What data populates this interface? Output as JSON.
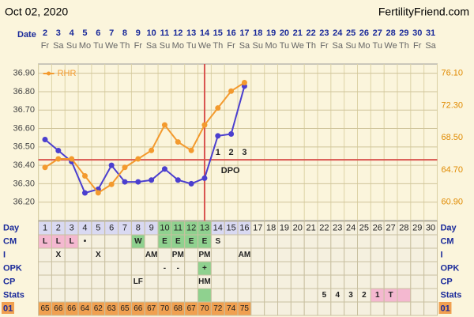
{
  "header": {
    "date": "Oct 02, 2020",
    "site": "FertilityFriend.com"
  },
  "chart_data": {
    "type": "line",
    "date_label": "Date",
    "dates": [
      2,
      3,
      4,
      5,
      6,
      7,
      8,
      9,
      10,
      11,
      12,
      13,
      14,
      15,
      16,
      17,
      18,
      19,
      20,
      21,
      22,
      23,
      24,
      25,
      26,
      27,
      28,
      29,
      30,
      31
    ],
    "weekdays": [
      "Fr",
      "Sa",
      "Su",
      "Mo",
      "Tu",
      "We",
      "Th",
      "Fr",
      "Sa",
      "Su",
      "Mo",
      "Tu",
      "We",
      "Th",
      "Fr",
      "Sa",
      "Su",
      "Mo",
      "Tu",
      "We",
      "Th",
      "Fr",
      "Sa",
      "Su",
      "Mo",
      "Tu",
      "We",
      "Th",
      "Fr",
      "Sa"
    ],
    "categories": [
      1,
      2,
      3,
      4,
      5,
      6,
      7,
      8,
      9,
      10,
      11,
      12,
      13,
      14,
      15,
      16,
      17,
      18,
      19,
      20,
      21,
      22,
      23,
      24,
      25,
      26,
      27,
      28,
      29,
      30
    ],
    "series": [
      {
        "color": "#4b3fcf",
        "values": [
          36.54,
          36.48,
          36.42,
          36.25,
          36.27,
          36.4,
          36.31,
          36.31,
          36.32,
          36.38,
          36.32,
          36.3,
          36.33,
          36.56,
          36.57,
          36.83,
          null,
          null,
          null,
          null,
          null,
          null,
          null,
          null,
          null,
          null,
          null,
          null,
          null,
          null
        ]
      },
      {
        "name": "RHR",
        "color": "#f39a2e",
        "axis": "y2",
        "values": [
          65,
          66,
          66,
          64,
          62,
          63,
          65,
          66,
          67,
          70,
          68,
          67,
          70,
          72,
          74,
          75,
          null,
          null,
          null,
          null,
          null,
          null,
          null,
          null,
          null,
          null,
          null,
          null,
          null,
          null
        ]
      }
    ],
    "ylim": [
      36.1,
      36.95
    ],
    "yticks": [
      {
        "value": 36.9,
        "label": "36.90"
      },
      {
        "value": 36.8,
        "label": "36.80"
      },
      {
        "value": 36.7,
        "label": "36.70"
      },
      {
        "value": 36.6,
        "label": "36.60"
      },
      {
        "value": 36.5,
        "label": "36.50"
      },
      {
        "value": 36.4,
        "label": "36.40"
      },
      {
        "value": 36.3,
        "label": "36.30"
      },
      {
        "value": 36.2,
        "label": "36.20"
      }
    ],
    "y2lim": [
      58.73,
      77.19
    ],
    "y2ticks": [
      {
        "value": 76.1,
        "label": "76.10"
      },
      {
        "value": 72.3,
        "label": "72.30"
      },
      {
        "value": 68.5,
        "label": "68.50"
      },
      {
        "value": 64.7,
        "label": "64.70"
      },
      {
        "value": 60.9,
        "label": "60.90"
      }
    ],
    "coverline": 36.43,
    "coverline_color": "#d9534f",
    "ovulation_day": 13,
    "dpo_labels": [
      "1",
      "2",
      "3"
    ],
    "dpo_text": "DPO",
    "grid": true,
    "legend": "top-left"
  },
  "table": {
    "day_label": "Day",
    "day_fills": [
      "#d9d9f2",
      "#d9d9f2",
      "#d9d9f2",
      "#d9d9f2",
      "#d9d9f2",
      "#d9d9f2",
      "#d9d9f2",
      "#d9d9f2",
      "#d9d9f2",
      "#8fd18f",
      "#8fd18f",
      "#8fd18f",
      "#8fd18f",
      "#d9d9f2",
      "#d9d9f2",
      "#d9d9f2",
      null,
      null,
      null,
      null,
      null,
      null,
      null,
      null,
      null,
      null,
      null,
      null,
      null,
      null
    ],
    "rows": [
      {
        "label": "CM",
        "cells": [
          "L",
          "L",
          "L",
          "•",
          null,
          null,
          null,
          "W",
          null,
          "E",
          "E",
          "E",
          "E",
          "S",
          null,
          null,
          null,
          null,
          null,
          null,
          null,
          null,
          null,
          null,
          null,
          null,
          null,
          null,
          null,
          null
        ],
        "fills": [
          "#f4b8d0",
          "#f4b8d0",
          "#f4b8d0",
          null,
          null,
          null,
          null,
          "#8fd18f",
          null,
          "#8fd18f",
          "#8fd18f",
          "#8fd18f",
          "#8fd18f",
          null,
          null,
          null,
          null,
          null,
          null,
          null,
          null,
          null,
          null,
          null,
          null,
          null,
          null,
          null,
          null,
          null
        ]
      },
      {
        "label": "I",
        "cells": [
          null,
          "X",
          null,
          null,
          "X",
          null,
          null,
          null,
          "AM",
          null,
          "PM",
          null,
          "PM",
          null,
          null,
          "AM",
          null,
          null,
          null,
          null,
          null,
          null,
          null,
          null,
          null,
          null,
          null,
          null,
          null,
          null
        ]
      },
      {
        "label": "OPK",
        "cells": [
          null,
          null,
          null,
          null,
          null,
          null,
          null,
          null,
          null,
          "-",
          "-",
          null,
          "+",
          null,
          null,
          null,
          null,
          null,
          null,
          null,
          null,
          null,
          null,
          null,
          null,
          null,
          null,
          null,
          null,
          null
        ],
        "fills": [
          null,
          null,
          null,
          null,
          null,
          null,
          null,
          null,
          null,
          null,
          null,
          null,
          "#8fd18f",
          null,
          null,
          null,
          null,
          null,
          null,
          null,
          null,
          null,
          null,
          null,
          null,
          null,
          null,
          null,
          null,
          null
        ]
      },
      {
        "label": "CP",
        "cells": [
          null,
          null,
          null,
          null,
          null,
          null,
          null,
          "LF",
          null,
          null,
          null,
          null,
          "HM",
          null,
          null,
          null,
          null,
          null,
          null,
          null,
          null,
          null,
          null,
          null,
          null,
          null,
          null,
          null,
          null,
          null
        ]
      },
      {
        "label": "Stats",
        "cells": [
          null,
          null,
          null,
          null,
          null,
          null,
          null,
          null,
          null,
          null,
          null,
          null,
          null,
          null,
          null,
          null,
          null,
          null,
          null,
          null,
          null,
          "5",
          "4",
          "3",
          "2",
          "1",
          "T",
          null,
          null,
          null
        ],
        "fills": [
          null,
          null,
          null,
          null,
          null,
          null,
          null,
          null,
          null,
          null,
          null,
          null,
          "#8fd18f",
          null,
          null,
          null,
          null,
          null,
          null,
          null,
          null,
          null,
          null,
          null,
          null,
          "#f4b8d0",
          "#f4b8d0",
          "#f4b8d0",
          null,
          null
        ]
      }
    ],
    "rhr_row": {
      "label": "01",
      "fill": "#f0a050"
    }
  }
}
